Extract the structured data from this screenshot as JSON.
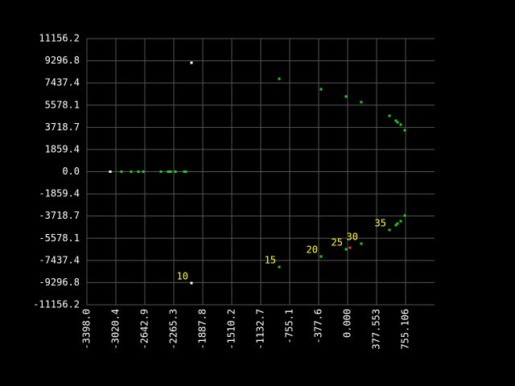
{
  "chart_data": {
    "type": "scatter",
    "xlim": [
      -3398.0,
      1132.7
    ],
    "ylim": [
      -11156.2,
      11156.2
    ],
    "xticks": [
      {
        "value": -3398.0,
        "label": "-3398.0"
      },
      -3020.4,
      -2642.9,
      -2265.3,
      -1887.8,
      -1510.2,
      -1132.7,
      -755.1,
      -377.6,
      {
        "value": 0,
        "label": "0.000"
      },
      377.553,
      755.106
    ],
    "yticks": [
      11156.2,
      9296.8,
      7437.4,
      5578.1,
      3718.7,
      1859.4,
      {
        "value": 0,
        "label": "0.0"
      },
      -1859.4,
      -3718.7,
      -5578.1,
      -7437.4,
      -9296.8,
      -11156.2
    ],
    "grid": true,
    "series": [
      {
        "color": "#ffffff",
        "x": [
          -3094,
          -2035,
          -2035
        ],
        "y": [
          0,
          9133,
          -9334
        ]
      },
      {
        "color": "#22cc22",
        "x": [
          -2947,
          -2821,
          -2727,
          -2664,
          -2433,
          -2339,
          -2307,
          -2244,
          -2129,
          -2108,
          -891,
          -346,
          -21,
          178,
          545,
          629,
          650,
          692,
          745,
          -891,
          -346,
          -21,
          178,
          545,
          629,
          650,
          692,
          745
        ],
        "y": [
          0,
          0,
          0,
          0,
          0,
          0,
          0,
          0,
          0,
          0,
          7785,
          6909,
          6302,
          5830,
          4684,
          4280,
          4145,
          3943,
          3471,
          -7987,
          -7111,
          -6504,
          -6032,
          -4886,
          -4482,
          -4347,
          -4145,
          -3673
        ]
      },
      {
        "color": "#ff3030",
        "x": [
          31
        ],
        "y": [
          -6369
        ]
      }
    ],
    "annotations": [
      {
        "text": "10",
        "x": -2035,
        "y": -9334
      },
      {
        "text": "15",
        "x": -891,
        "y": -7987
      },
      {
        "text": "20",
        "x": -346,
        "y": -7111
      },
      {
        "text": "25",
        "x": -21,
        "y": -6504
      },
      {
        "text": "30",
        "x": 178,
        "y": -6032
      },
      {
        "text": "35",
        "x": 545,
        "y": -4886
      }
    ]
  }
}
